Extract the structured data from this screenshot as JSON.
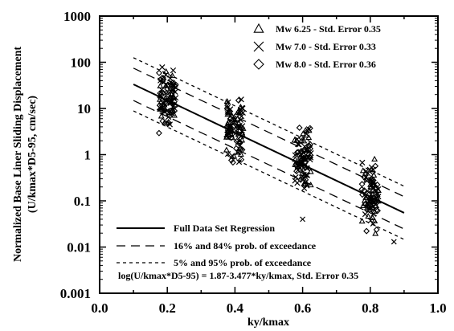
{
  "chart_data": {
    "type": "scatter",
    "title": "",
    "xlabel": "ky/kmax",
    "ylabel_line1": "Normalized Base Liner Sliding Displacement",
    "ylabel_line2": "(U/kmax*D5-95, cm/sec)",
    "xlim": [
      0.0,
      1.0
    ],
    "ylim": [
      0.001,
      1000
    ],
    "y_scale": "log",
    "grid": false,
    "x_ticks": [
      {
        "value": 0.0,
        "label": "0.0"
      },
      {
        "value": 0.2,
        "label": "0.2"
      },
      {
        "value": 0.4,
        "label": "0.4"
      },
      {
        "value": 0.6,
        "label": "0.6"
      },
      {
        "value": 0.8,
        "label": "0.8"
      },
      {
        "value": 1.0,
        "label": "1.0"
      }
    ],
    "y_ticks": [
      {
        "value": 0.001,
        "label": "0.001"
      },
      {
        "value": 0.01,
        "label": "0.01"
      },
      {
        "value": 0.1,
        "label": "0.1"
      },
      {
        "value": 1,
        "label": "1"
      },
      {
        "value": 10,
        "label": "10"
      },
      {
        "value": 100,
        "label": "100"
      },
      {
        "value": 1000,
        "label": "1000"
      }
    ],
    "marker_legend": [
      {
        "marker": "triangle",
        "label": "Mw 6.25 - Std. Error 0.35"
      },
      {
        "marker": "cross",
        "label": "Mw 7.0 - Std. Error 0.33"
      },
      {
        "marker": "diamond",
        "label": "Mw 8.0 - Std. Error 0.36"
      }
    ],
    "line_legend": [
      {
        "style": "solid",
        "label": "Full Data Set Regression"
      },
      {
        "style": "long-dash",
        "label": "16% and 84% prob. of exceedance"
      },
      {
        "style": "short-dash",
        "label": "5% and 95% prob. of exceedance"
      }
    ],
    "equation": "log(U/kmax*D5-95) = 1.87-3.477*ky/kmax, Std. Error 0.35",
    "regression": {
      "intercept": 1.87,
      "slope": -3.477,
      "std_error": 0.35,
      "x_range": [
        0.1,
        0.9
      ]
    },
    "bands": [
      {
        "style": "long-dash",
        "offset_sigma": 1.0
      },
      {
        "style": "long-dash",
        "offset_sigma": -1.0
      },
      {
        "style": "short-dash",
        "offset_sigma": 1.645
      },
      {
        "style": "short-dash",
        "offset_sigma": -1.645
      }
    ],
    "clusters": [
      {
        "x": 0.2,
        "y_min": 2.8,
        "y_max": 80
      },
      {
        "x": 0.4,
        "y_min": 0.5,
        "y_max": 22
      },
      {
        "x": 0.6,
        "y_min": 0.15,
        "y_max": 4.5
      },
      {
        "x": 0.8,
        "y_min": 0.015,
        "y_max": 0.9
      }
    ],
    "outliers": [
      {
        "x": 0.6,
        "y": 0.04,
        "marker": "cross"
      },
      {
        "x": 0.87,
        "y": 0.013,
        "marker": "cross"
      }
    ]
  }
}
